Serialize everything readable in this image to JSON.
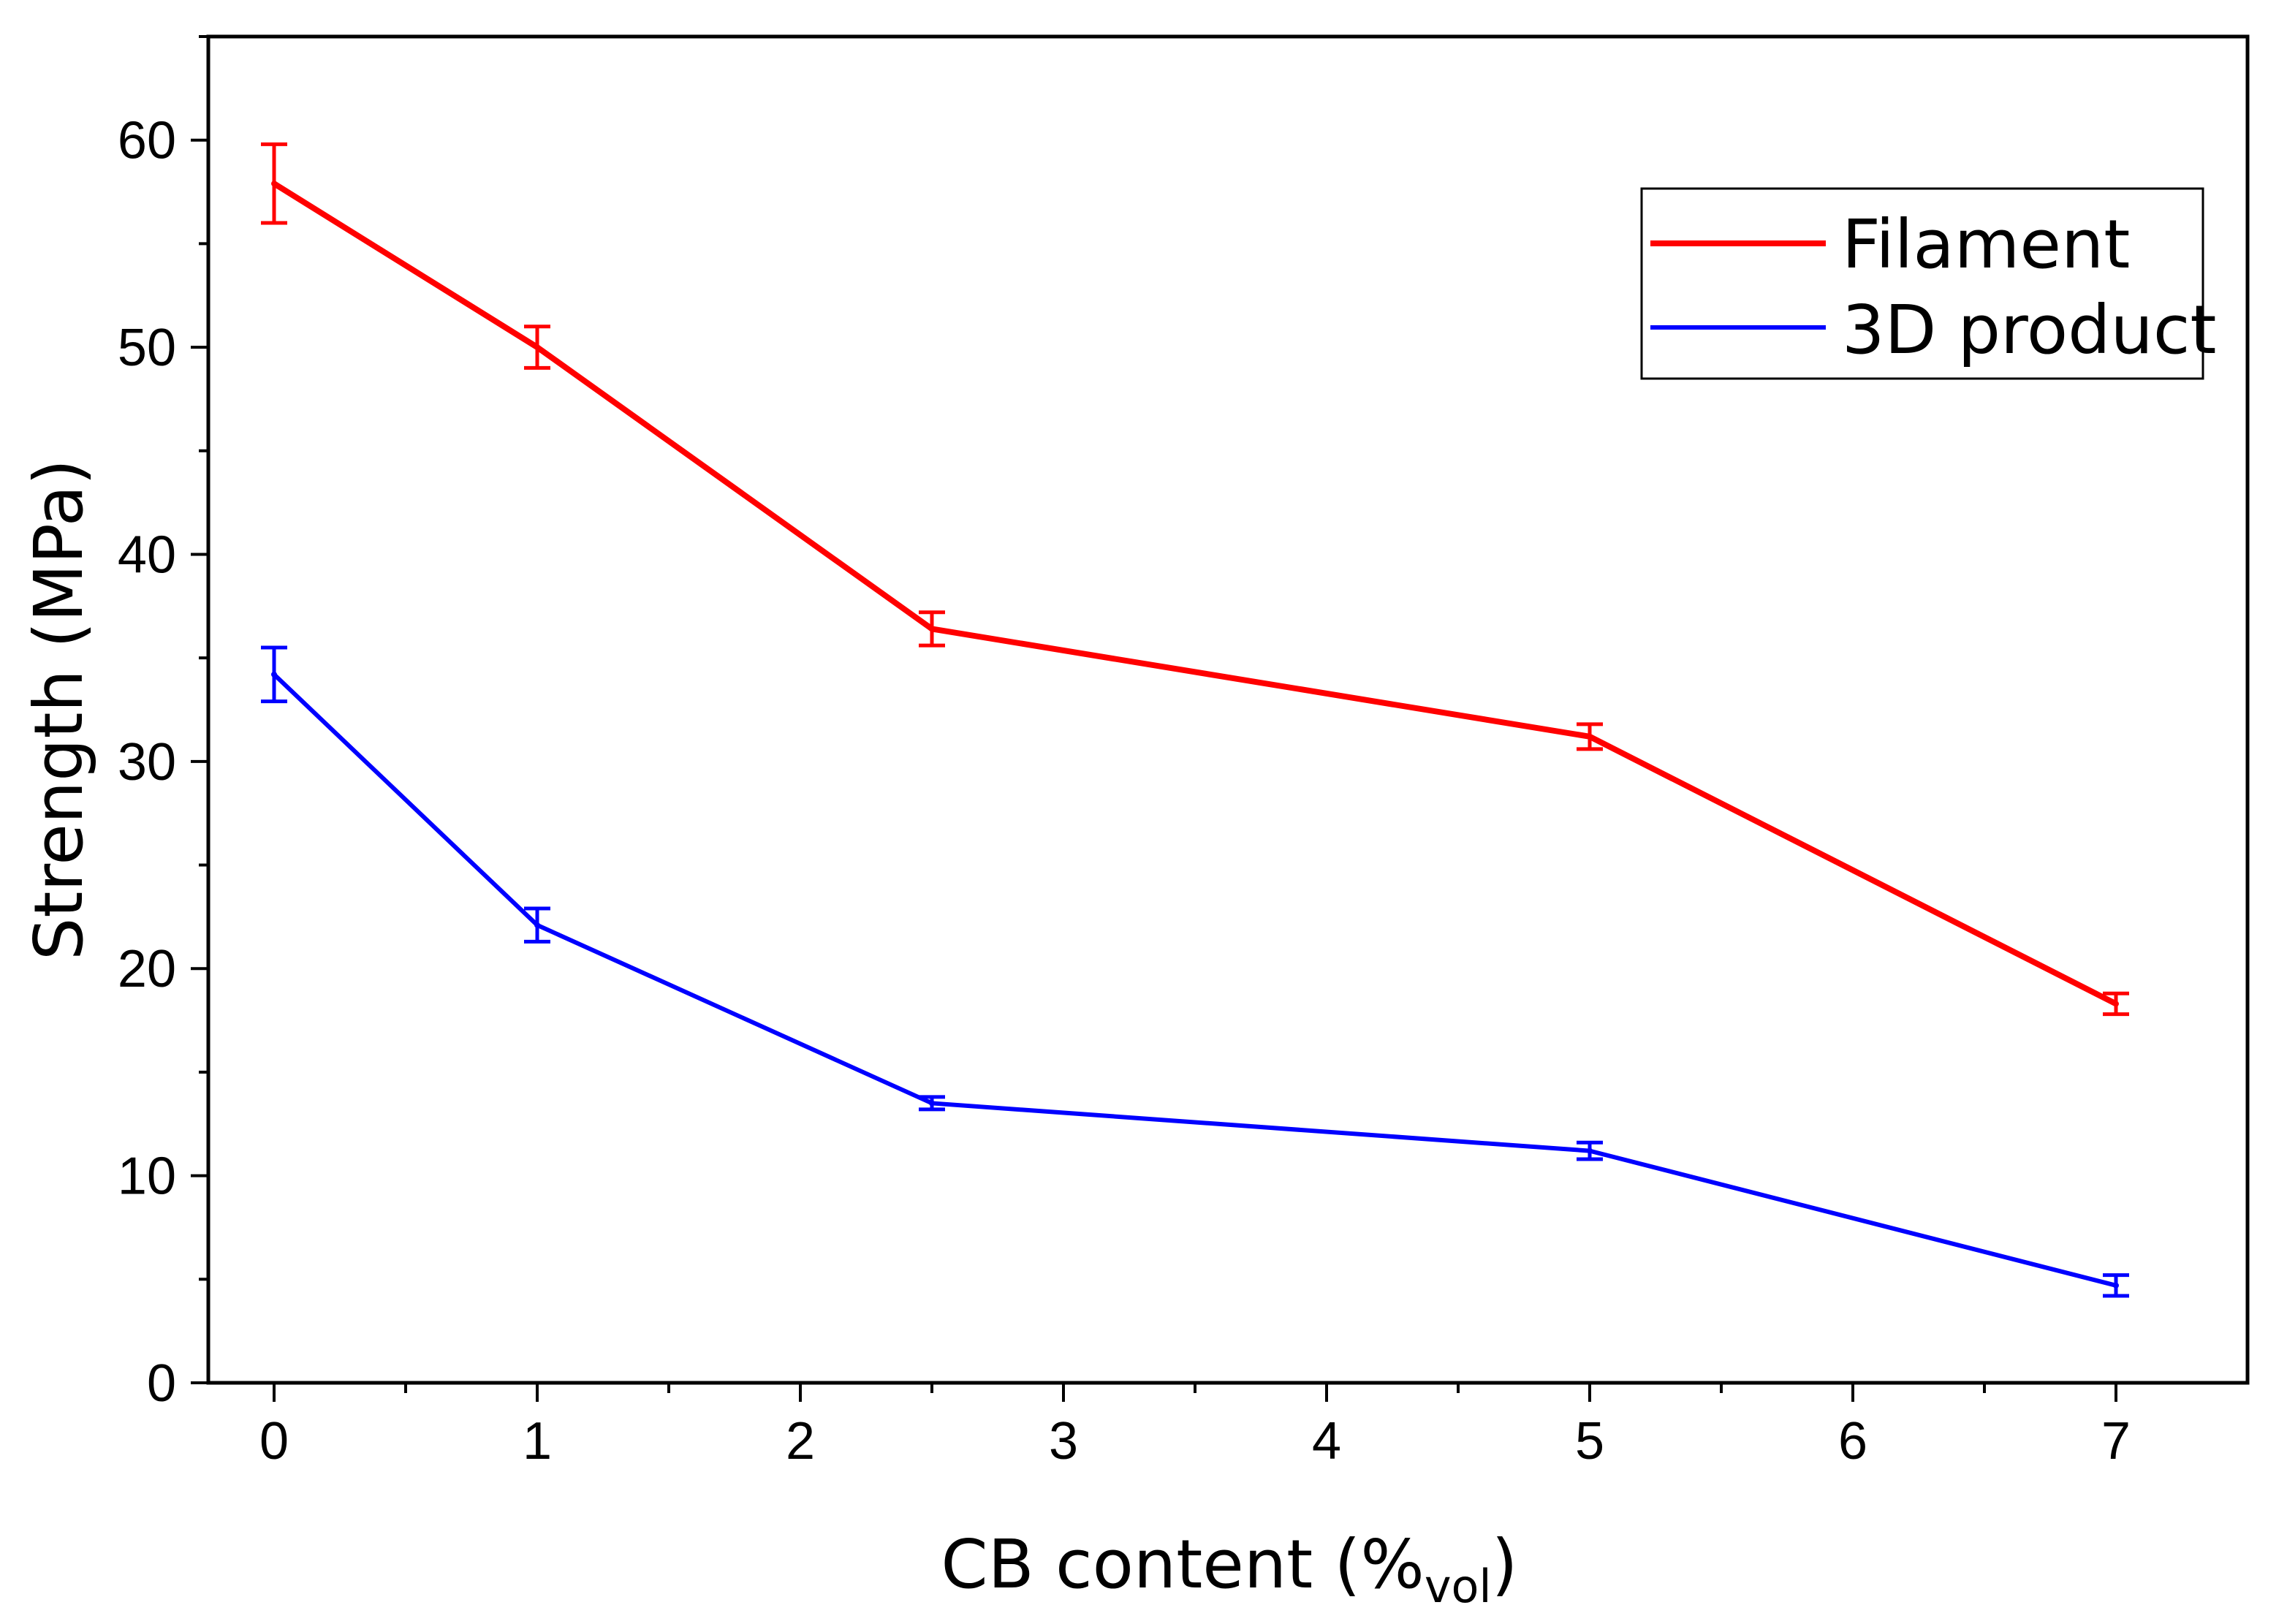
{
  "chart_data": {
    "type": "line",
    "title": "",
    "xlabel": "CB content (%",
    "xlabel_subscript": "vol",
    "xlabel_close": ")",
    "ylabel": "Strength (MPa)",
    "xlim": [
      -0.25,
      7.5
    ],
    "ylim": [
      0,
      65
    ],
    "xticks": [
      0,
      1,
      2,
      3,
      4,
      5,
      6,
      7
    ],
    "yticks": [
      0,
      10,
      20,
      30,
      40,
      50,
      60
    ],
    "x": [
      0,
      1,
      2.5,
      5,
      7
    ],
    "grid": false,
    "legend_position": "top-right",
    "series": [
      {
        "name": "Filament",
        "color": "#ff0000",
        "values": [
          57.9,
          50.0,
          36.4,
          31.2,
          18.3
        ],
        "errors": [
          1.9,
          1.0,
          0.8,
          0.6,
          0.5
        ]
      },
      {
        "name": "3D product",
        "color": "#0000ff",
        "values": [
          34.2,
          22.1,
          13.5,
          11.2,
          4.7
        ],
        "errors": [
          1.3,
          0.8,
          0.3,
          0.4,
          0.5
        ]
      }
    ]
  }
}
